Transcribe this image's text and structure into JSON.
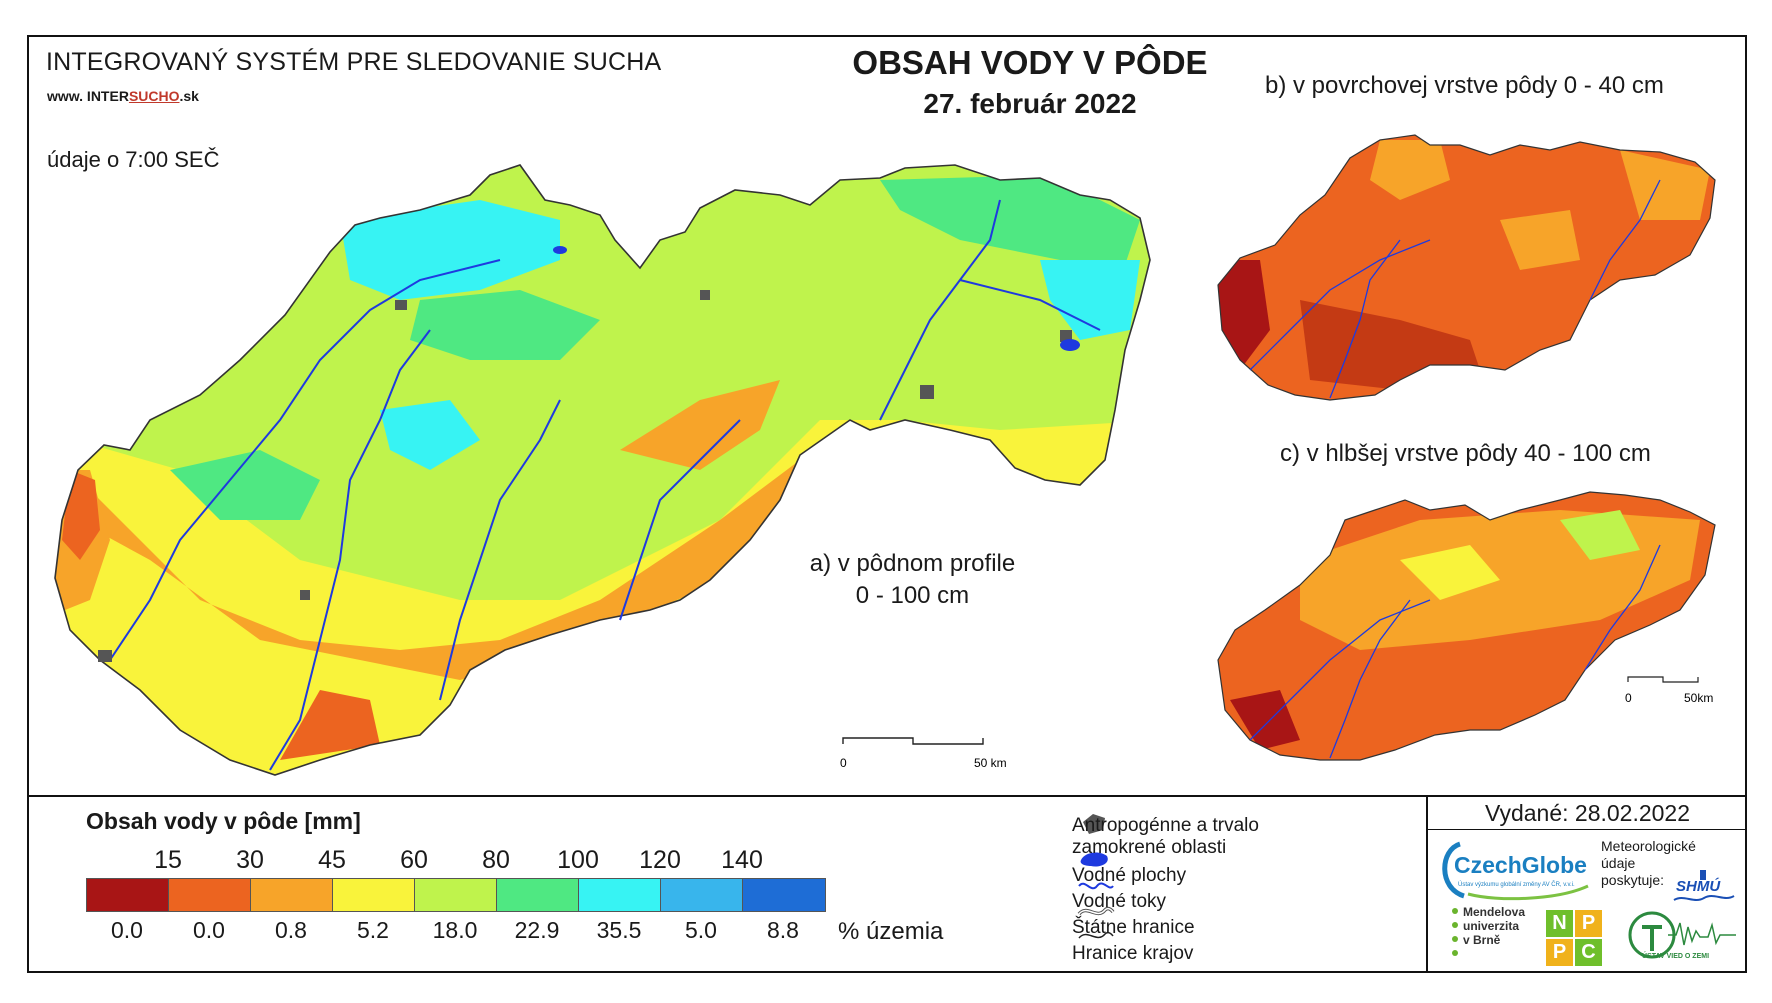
{
  "header": {
    "system_title": "INTEGROVANÝ SYSTÉM PRE SLEDOVANIE SUCHA",
    "website_prefix": "www. INTER",
    "website_highlight": "SUCHO",
    "website_suffix": ".sk",
    "data_time": "údaje o 7:00 SEČ",
    "main_title": "OBSAH VODY V PÔDE",
    "date": "27. február 2022"
  },
  "maps": {
    "a_label_line1": "a) v pôdnom profile",
    "a_label_line2": "0 - 100 cm",
    "b_label": "b) v povrchovej vrstve pôdy 0 - 40 cm",
    "c_label": "c) v hlbšej vrstve pôdy 40 - 100 cm",
    "scale_main_zero": "0",
    "scale_main_end": "50 km",
    "scale_small_zero": "0",
    "scale_small_end": "50km"
  },
  "legend": {
    "title": "Obsah vody v pôde  [mm]",
    "thresholds": [
      "15",
      "30",
      "45",
      "60",
      "80",
      "100",
      "120",
      "140"
    ],
    "class_colors": [
      "#a81515",
      "#ec6420",
      "#f7a429",
      "#f9f33b",
      "#bff34c",
      "#4fe882",
      "#37f3f3",
      "#38b5ec",
      "#1e6dd6"
    ],
    "percentages": [
      "0.0",
      "0.0",
      "0.8",
      "5.2",
      "18.0",
      "22.9",
      "35.5",
      "5.0",
      "8.8"
    ],
    "percent_label": "% územia"
  },
  "symbols": {
    "anthropogenic": "Antropogénne a trvalo",
    "anthropogenic_2": "zamokrené oblasti",
    "water_bodies": "Vodné plochy",
    "water_streams": "Vodné toky",
    "state_border": "Štátne hranice",
    "regional_border": "Hranice krajov"
  },
  "footer": {
    "issued": "Vydané: 28.02.2022",
    "czechglobe": "CzechGlobe",
    "czechglobe_sub": "Ústav výzkumu globální změny AV ČR, v.v.i.",
    "meteo_line1": "Meteorologické",
    "meteo_line2": "údaje",
    "meteo_line3": "poskytuje:",
    "shmu": "SHMÚ",
    "mendel_line1": "Mendelova",
    "mendel_line2": "univerzita",
    "mendel_line3": "v Brně",
    "nppc": [
      "N",
      "P",
      "P",
      "C"
    ],
    "uvz": "ÚSTAV VIED O ZEMI"
  }
}
